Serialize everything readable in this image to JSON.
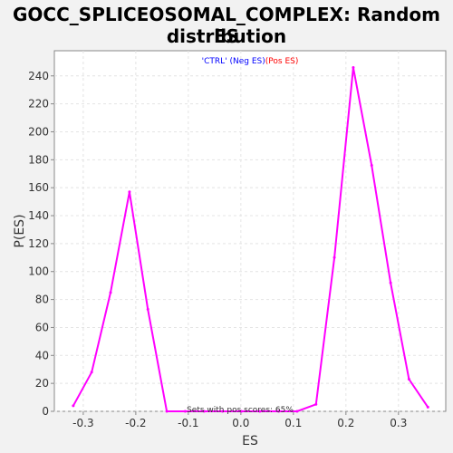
{
  "chart_data": {
    "type": "line",
    "title_line1": "GOCC_SPLICEOSOMAL_COMPLEX: Random ES",
    "title_line2": "distribution",
    "xlabel": "ES",
    "ylabel": "P(ES)",
    "xlim": [
      -0.355,
      0.39
    ],
    "ylim": [
      0,
      258
    ],
    "x_ticks": [
      -0.3,
      -0.2,
      -0.1,
      0.0,
      0.1,
      0.2,
      0.3
    ],
    "x_tick_labels": [
      "-0.3",
      "-0.2",
      "-0.1",
      "0.0",
      "0.1",
      "0.2",
      "0.3"
    ],
    "y_ticks": [
      0,
      20,
      40,
      60,
      80,
      100,
      120,
      140,
      160,
      180,
      200,
      220,
      240
    ],
    "y_tick_labels": [
      "0",
      "20",
      "40",
      "60",
      "80",
      "100",
      "120",
      "140",
      "160",
      "180",
      "200",
      "220",
      "240"
    ],
    "grid": true,
    "legend": {
      "ctrl_label": "'CTRL' (Neg ES)",
      "pos_label": "(Pos ES)",
      "ctrl_color": "#0000ff",
      "pos_color": "#ff0000",
      "placement": "top-center"
    },
    "annotation": "Sets with pos scores: 65%",
    "series": [
      {
        "color": "#ff00ff",
        "x": [
          -0.319,
          -0.284,
          -0.248,
          -0.212,
          -0.177,
          -0.141,
          -0.106,
          -0.07,
          -0.035,
          0.001,
          0.036,
          0.072,
          0.107,
          0.143,
          0.178,
          0.214,
          0.249,
          0.285,
          0.32,
          0.356
        ],
        "y": [
          4,
          28,
          85,
          157,
          73,
          0,
          0,
          0,
          0,
          0,
          0,
          0,
          0,
          5,
          110,
          246,
          176,
          92,
          23,
          3
        ]
      }
    ]
  }
}
